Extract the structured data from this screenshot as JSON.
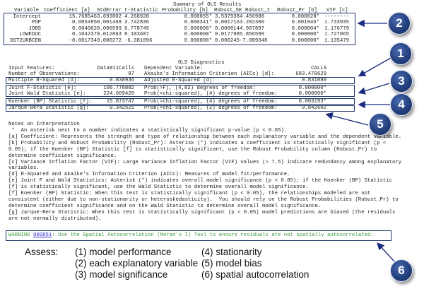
{
  "regression": {
    "title": "Summary of OLS Results",
    "headers": [
      "Variable",
      "Coefficient [a]",
      "StdError",
      "t-Statistic",
      "Probability [b]",
      "Robust_SE",
      "Robust_t",
      "Robust_Pr [b]",
      "VIF [c]"
    ],
    "rows": [
      {
        "variable": "Intercept",
        "coefficient": "15.768546",
        "stderror": "3.693802",
        "t": "4.268920",
        "prob": "0.000055*",
        "robust_se": "3.537938",
        "robust_t": "4.456988",
        "robust_pr": "0.000028*",
        "vif": "--------"
      },
      {
        "variable": "POP",
        "coefficient": "0.005495",
        "stderror": "0.001468",
        "t": "3.742836",
        "prob": "0.000341*",
        "robust_se": "0.001716",
        "robust_t": "3.202300",
        "robust_pr": "0.001946*",
        "vif": "1.733935"
      },
      {
        "variable": "JOBS",
        "coefficient": "0.004062",
        "stderror": "0.000599",
        "t": "6.778749",
        "prob": "0.000000*",
        "robust_se": "0.000814",
        "robust_t": "4.987897",
        "robust_pr": "0.000004*",
        "vif": "1.176779"
      },
      {
        "variable": "LOWEDUC",
        "coefficient": "0.104237",
        "stderror": "0.012863",
        "t": "8.103607",
        "prob": "0.000000*",
        "robust_se": "0.017798",
        "robust_t": "5.856599",
        "robust_pr": "0.000000*",
        "vif": "1.727065"
      },
      {
        "variable": "DST2URBCEN",
        "coefficient": "-0.001734",
        "stderror": "0.000272",
        "t": "-6.381896",
        "prob": "0.000000*",
        "robust_se": "0.000245",
        "robust_t": "-7.089348",
        "robust_pr": "0.000000*",
        "vif": "1.135479"
      }
    ]
  },
  "diagnostics": {
    "title": "OLS Diagnostics",
    "rows": [
      {
        "label": "Input Features:",
        "value": "Data911Calls",
        "label2": "Dependent Variable:",
        "value2": "CALLS"
      },
      {
        "label": "Number of Observations:",
        "value": "87",
        "label2": "Akaike's Information Criterion (AICc) [d]:",
        "value2": "683.470629"
      },
      {
        "label": "Multiple R-Squared [d]:",
        "value": "0.838936",
        "label2": "Adjusted R-Squared [d]:",
        "value2": "0.831080"
      },
      {
        "label": "Joint F-Statistic [e]:",
        "value": "106.778882",
        "label2": "Prob(>F), (4,82) degrees of freedom:",
        "value2": "0.000000*"
      },
      {
        "label": "Joint Wald Statistic [e]:",
        "value": "224.669428",
        "label2": "Prob(>chi-squared), (4) degrees of freedom:",
        "value2": "0.000000*"
      },
      {
        "label": "Koenker (BP) Statistic [f]:",
        "value": "15.873747",
        "label2": "Prob(>chi-squared), (4) degrees of freedom:",
        "value2": "0.003193*"
      },
      {
        "label": "Jarque-Bera Statistic [g]:",
        "value": "0.342521",
        "label2": "Prob(>chi-squared), (2) degrees of freedom:",
        "value2": "0.842602"
      }
    ]
  },
  "notes": {
    "title": "Notes on Interpretation",
    "lines": [
      " *  An asterisk next to a number indicates a statistically significant p-value (p < 0.05).",
      "[a] Coefficient: Represents the strength and type of relationship between each explanatory variable and the dependent variable.",
      "[b] Probability and Robust Probability (Robust_Pr): Asterisk (*) indicates a coefficient is statistically significant (p <",
      "0.05); if the Koenker (BP) Statistic [f] is statistically significant, use the Robust Probability column (Robust_Pr) to",
      "determine coefficient significance.",
      "[c] Variance Inflation Factor (VIF): Large Variance Inflation Factor (VIF) values (> 7.5) indicate redundancy among explanatory",
      "variables.",
      "[d] R-Squared and Akaike's Information Criterion (AICc): Measures of model fit/performance.",
      "[e] Joint F and Wald Statistics: Asterisk (*) indicates overall model significance (p < 0.05); if the Koenker (BP) Statistic",
      "[f] is statistically significant, use the Wald Statistic to determine overall model significance.",
      "[f] Koenker (BP) Statistic: When this test is statistically significant (p < 0.05), the relationships modeled are not",
      "consistent (either due to non-stationarity or heteroskedasticity).  You should rely on the Robust Probabilities (Robust_Pr) to",
      "determine coefficient significance and on the Wald Statistic to determine overall model significance.",
      "[g] Jarque-Bera Statistic: When this test is statistically significant (p < 0.05) model predictions are biased (the residuals",
      "are not normally distributed)."
    ]
  },
  "warning": {
    "prefix": "WARNING ",
    "code": "000851",
    "text": ": Use the Spatial Autocorrelation (Moran's I) Tool to ensure residuals are not spatially autocorrelated."
  },
  "assess": {
    "label": "Assess:",
    "items": [
      "(1) model performance",
      "(2) each explanatory variable",
      "(3) model significance",
      "(4) stationarity",
      "(5) model bias",
      "(6) spatial autocorrelation"
    ]
  },
  "callouts": [
    "1",
    "2",
    "3",
    "4",
    "5",
    "6"
  ],
  "colors": {
    "box": "#1e3466",
    "arrow": "#1a2a80",
    "warning_text": "#3c9a3c",
    "link": "#2a2ad0",
    "callout": "#24407e"
  }
}
